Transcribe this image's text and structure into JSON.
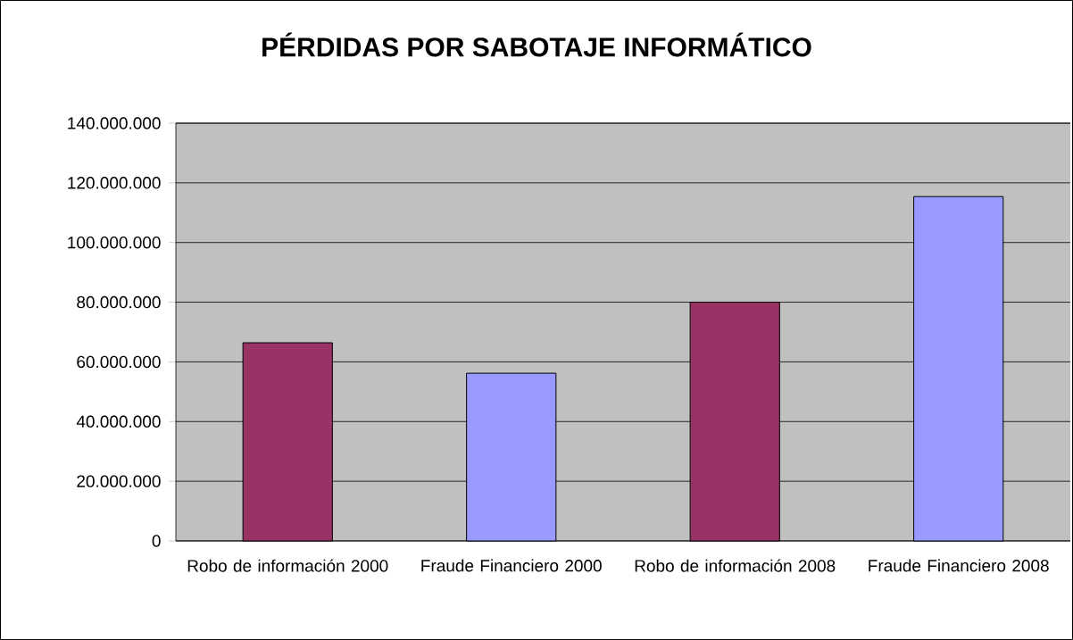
{
  "chart_data": {
    "type": "bar",
    "title": "PÉRDIDAS POR SABOTAJE INFORMÁTICO",
    "categories": [
      "Robo de información 2000",
      "Fraude Financiero 2000",
      "Robo de información 2008",
      "Fraude Financiero 2008"
    ],
    "values": [
      66400000,
      56200000,
      80000000,
      115400000
    ],
    "colors": [
      "#993366",
      "#9999ff",
      "#993366",
      "#9999ff"
    ],
    "ylim": [
      0,
      140000000
    ],
    "yticks": [
      {
        "value": 0,
        "label": "0"
      },
      {
        "value": 20000000,
        "label": "20.000.000"
      },
      {
        "value": 40000000,
        "label": "40.000.000"
      },
      {
        "value": 60000000,
        "label": "60.000.000"
      },
      {
        "value": 80000000,
        "label": "80.000.000"
      },
      {
        "value": 100000000,
        "label": "100.000.000"
      },
      {
        "value": 120000000,
        "label": "120.000.000"
      },
      {
        "value": 140000000,
        "label": "140.000.000"
      }
    ],
    "grid": "y"
  }
}
